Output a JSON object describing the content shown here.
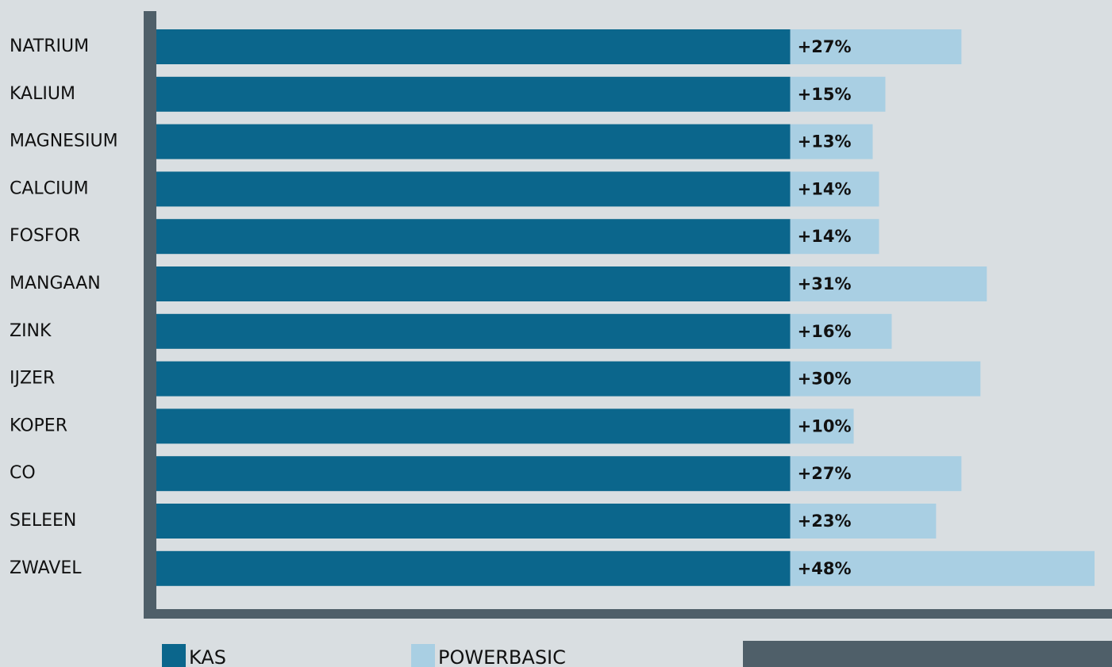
{
  "chart_data": {
    "type": "stacked-bar-horizontal",
    "categories": [
      "NATRIUM",
      "KALIUM",
      "MAGNESIUM",
      "CALCIUM",
      "FOSFOR",
      "MANGAAN",
      "ZINK",
      "IJZER",
      "KOPER",
      "CO",
      "SELEEN",
      "ZWAVEL"
    ],
    "series": [
      {
        "name": "KAS",
        "color": "#0b668c",
        "values": [
          100,
          100,
          100,
          100,
          100,
          100,
          100,
          100,
          100,
          100,
          100,
          100
        ]
      },
      {
        "name": "POWERBASIC",
        "color": "#a9cfe3",
        "values": [
          27,
          15,
          13,
          14,
          14,
          31,
          16,
          30,
          10,
          27,
          23,
          48
        ],
        "value_labels": [
          "+27%",
          "+15%",
          "+13%",
          "+14%",
          "+14%",
          "+31%",
          "+16%",
          "+30%",
          "+10%",
          "+27%",
          "+23%",
          "+48%"
        ]
      }
    ],
    "xlim": [
      0,
      150
    ]
  }
}
